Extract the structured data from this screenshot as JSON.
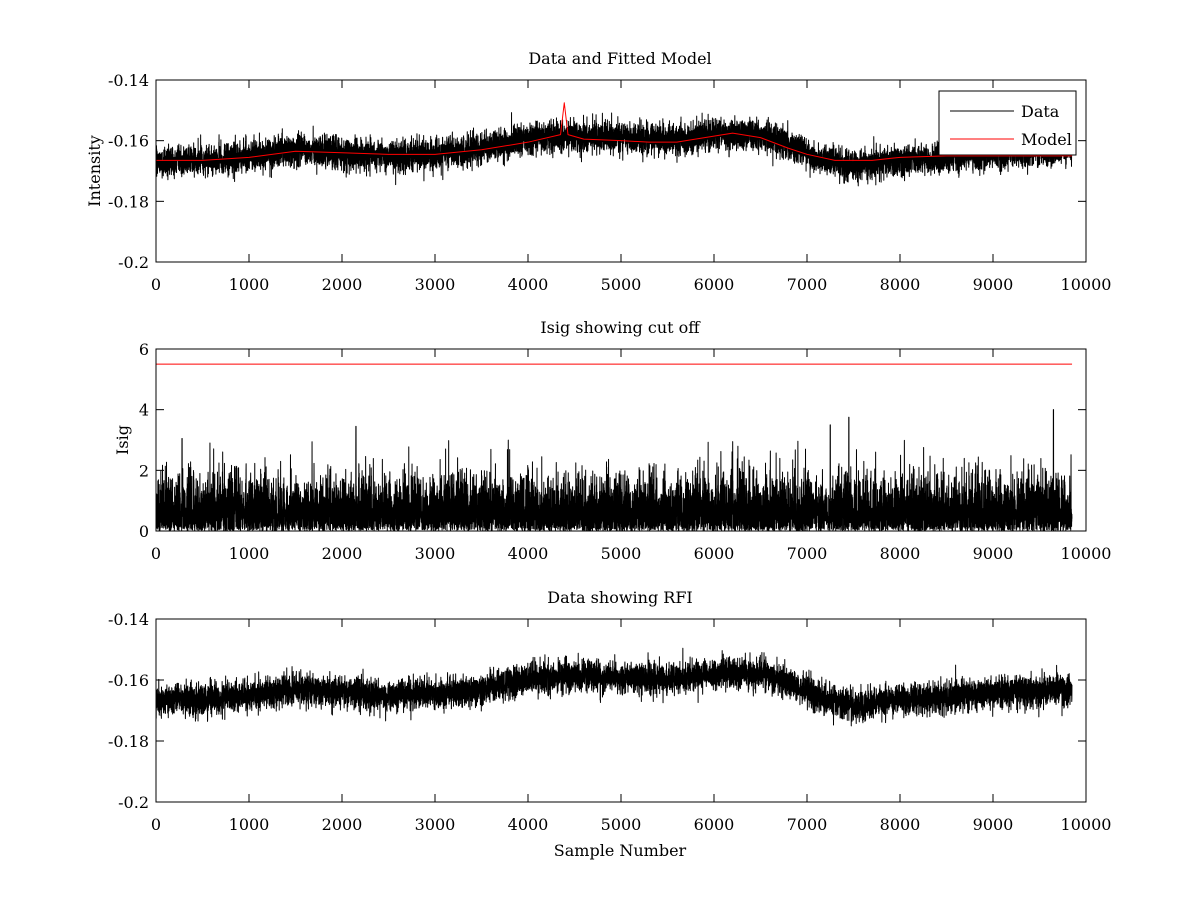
{
  "chart_data": [
    {
      "type": "line",
      "title": "Data and Fitted Model",
      "xlabel": "",
      "ylabel": "Intensity",
      "xlim": [
        0,
        10000
      ],
      "ylim": [
        -0.2,
        -0.14
      ],
      "xticks": [
        0,
        1000,
        2000,
        3000,
        4000,
        5000,
        6000,
        7000,
        8000,
        9000,
        10000
      ],
      "yticks": [
        -0.2,
        -0.18,
        -0.16,
        -0.14
      ],
      "ytick_labels": [
        "-0.2",
        "-0.18",
        "-0.16",
        "-0.14"
      ],
      "grid": false,
      "legend": {
        "placement": "top-right",
        "entries": [
          {
            "name": "Data",
            "color": "#000000"
          },
          {
            "name": "Model",
            "color": "#ff0000"
          }
        ]
      },
      "series": [
        {
          "name": "Data",
          "color": "#000000",
          "style": "noisy",
          "n_points": 9850,
          "noise_amplitude": 0.0045,
          "baseline": {
            "x": [
              0,
              500,
              1000,
              1500,
              2000,
              2500,
              3000,
              3500,
              4000,
              4400,
              4600,
              5000,
              5500,
              6000,
              6500,
              6800,
              7000,
              7200,
              7500,
              7800,
              8000,
              8500,
              9000,
              9500,
              9850
            ],
            "y": [
              -0.1665,
              -0.1665,
              -0.165,
              -0.163,
              -0.164,
              -0.165,
              -0.1645,
              -0.163,
              -0.1595,
              -0.1585,
              -0.1585,
              -0.159,
              -0.16,
              -0.158,
              -0.158,
              -0.161,
              -0.164,
              -0.1665,
              -0.1685,
              -0.167,
              -0.1665,
              -0.1655,
              -0.1645,
              -0.1635,
              -0.163
            ]
          },
          "spikes": [
            {
              "x": 4390,
              "y": -0.1475
            }
          ]
        },
        {
          "name": "Model",
          "color": "#ff0000",
          "style": "line",
          "x": [
            0,
            500,
            1000,
            1500,
            2000,
            2500,
            3000,
            3500,
            4000,
            4350,
            4390,
            4430,
            4600,
            5000,
            5300,
            5600,
            6000,
            6200,
            6500,
            6800,
            7000,
            7300,
            7500,
            7700,
            8000,
            8500,
            9000,
            9500,
            9850
          ],
          "y": [
            -0.1665,
            -0.1665,
            -0.1655,
            -0.1635,
            -0.164,
            -0.1645,
            -0.1645,
            -0.163,
            -0.1605,
            -0.158,
            -0.1475,
            -0.158,
            -0.1595,
            -0.16,
            -0.1605,
            -0.1605,
            -0.1585,
            -0.1575,
            -0.159,
            -0.1625,
            -0.1645,
            -0.1665,
            -0.1665,
            -0.1665,
            -0.1655,
            -0.165,
            -0.165,
            -0.165,
            -0.165
          ]
        }
      ]
    },
    {
      "type": "line",
      "title": "Isig showing cut off",
      "xlabel": "",
      "ylabel": "Isig",
      "xlim": [
        0,
        10000
      ],
      "ylim": [
        0,
        6
      ],
      "xticks": [
        0,
        1000,
        2000,
        3000,
        4000,
        5000,
        6000,
        7000,
        8000,
        9000,
        10000
      ],
      "yticks": [
        0,
        2,
        4,
        6
      ],
      "ytick_labels": [
        "0",
        "2",
        "4",
        "6"
      ],
      "grid": false,
      "series": [
        {
          "name": "Isig",
          "color": "#000000",
          "style": "abs-noise",
          "n_points": 9850,
          "typical_peak": 3.0,
          "max_peak": 4.0,
          "spikes": [
            {
              "x": 9650,
              "y": 4.0
            },
            {
              "x": 7450,
              "y": 3.75
            },
            {
              "x": 7250,
              "y": 3.5
            },
            {
              "x": 2150,
              "y": 3.45
            },
            {
              "x": 280,
              "y": 3.05
            }
          ]
        },
        {
          "name": "Cut off",
          "color": "#ff0000",
          "style": "line",
          "x": [
            0,
            9850
          ],
          "y": [
            5.5,
            5.5
          ]
        }
      ]
    },
    {
      "type": "line",
      "title": "Data showing RFI",
      "xlabel": "Sample Number",
      "ylabel": "",
      "xlim": [
        0,
        10000
      ],
      "ylim": [
        -0.2,
        -0.14
      ],
      "xticks": [
        0,
        1000,
        2000,
        3000,
        4000,
        5000,
        6000,
        7000,
        8000,
        9000,
        10000
      ],
      "yticks": [
        -0.2,
        -0.18,
        -0.16,
        -0.14
      ],
      "ytick_labels": [
        "-0.2",
        "-0.18",
        "-0.16",
        "-0.14"
      ],
      "grid": false,
      "series": [
        {
          "name": "Data",
          "color": "#000000",
          "style": "noisy",
          "n_points": 9850,
          "noise_amplitude": 0.0045,
          "baseline": {
            "x": [
              0,
              500,
              1000,
              1500,
              2000,
              2500,
              3000,
              3500,
              4000,
              4400,
              4600,
              5000,
              5500,
              6000,
              6500,
              6800,
              7000,
              7200,
              7500,
              7800,
              8000,
              8500,
              9000,
              9500,
              9850
            ],
            "y": [
              -0.1665,
              -0.1665,
              -0.165,
              -0.163,
              -0.164,
              -0.165,
              -0.1645,
              -0.163,
              -0.1595,
              -0.1585,
              -0.1585,
              -0.159,
              -0.16,
              -0.158,
              -0.158,
              -0.161,
              -0.164,
              -0.1665,
              -0.1685,
              -0.167,
              -0.1665,
              -0.1655,
              -0.1645,
              -0.1635,
              -0.163
            ]
          },
          "spikes": []
        }
      ]
    }
  ]
}
